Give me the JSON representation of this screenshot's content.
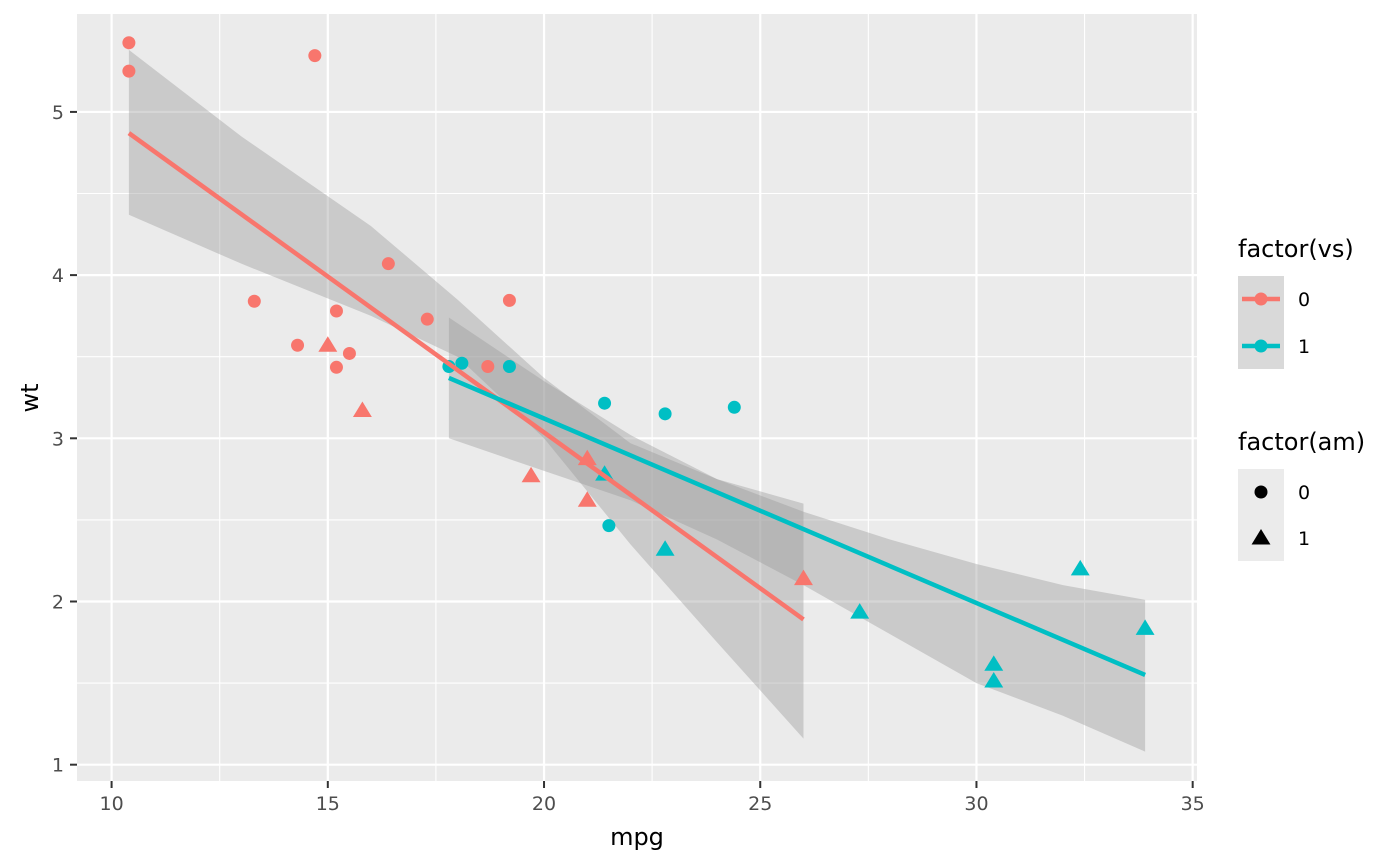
{
  "chart_data": {
    "type": "scatter",
    "title": "",
    "xlabel": "mpg",
    "ylabel": "wt",
    "xlim": [
      9.2,
      35.1
    ],
    "ylim": [
      0.9,
      5.6
    ],
    "x_ticks": [
      10,
      15,
      20,
      25,
      30,
      35
    ],
    "y_ticks": [
      1,
      2,
      3,
      4,
      5
    ],
    "grid": true,
    "legend_position": "right",
    "colors": {
      "vs0": "#F8766D",
      "vs1": "#00BFC4",
      "ribbon": "#999999",
      "panel": "#EBEBEB",
      "grid": "#FFFFFF"
    },
    "legends": [
      {
        "title": "factor(vs)",
        "type": "color",
        "entries": [
          {
            "label": "0",
            "color": "#F8766D"
          },
          {
            "label": "1",
            "color": "#00BFC4"
          }
        ]
      },
      {
        "title": "factor(am)",
        "type": "shape",
        "entries": [
          {
            "label": "0",
            "shape": "circle"
          },
          {
            "label": "1",
            "shape": "triangle"
          }
        ]
      }
    ],
    "points": [
      {
        "x": 10.4,
        "y": 5.424,
        "vs": 0,
        "am": 0
      },
      {
        "x": 10.4,
        "y": 5.25,
        "vs": 0,
        "am": 0
      },
      {
        "x": 14.7,
        "y": 5.345,
        "vs": 0,
        "am": 0
      },
      {
        "x": 13.3,
        "y": 3.84,
        "vs": 0,
        "am": 0
      },
      {
        "x": 14.3,
        "y": 3.57,
        "vs": 0,
        "am": 0
      },
      {
        "x": 15.2,
        "y": 3.78,
        "vs": 0,
        "am": 0
      },
      {
        "x": 15.2,
        "y": 3.435,
        "vs": 0,
        "am": 0
      },
      {
        "x": 15.5,
        "y": 3.52,
        "vs": 0,
        "am": 0
      },
      {
        "x": 16.4,
        "y": 4.07,
        "vs": 0,
        "am": 0
      },
      {
        "x": 17.3,
        "y": 3.73,
        "vs": 0,
        "am": 0
      },
      {
        "x": 18.7,
        "y": 3.44,
        "vs": 0,
        "am": 0
      },
      {
        "x": 19.2,
        "y": 3.845,
        "vs": 0,
        "am": 0
      },
      {
        "x": 15.0,
        "y": 3.57,
        "vs": 0,
        "am": 1
      },
      {
        "x": 15.8,
        "y": 3.17,
        "vs": 0,
        "am": 1
      },
      {
        "x": 19.7,
        "y": 2.77,
        "vs": 0,
        "am": 1
      },
      {
        "x": 21.0,
        "y": 2.62,
        "vs": 0,
        "am": 1
      },
      {
        "x": 21.0,
        "y": 2.875,
        "vs": 0,
        "am": 1
      },
      {
        "x": 26.0,
        "y": 2.14,
        "vs": 0,
        "am": 1
      },
      {
        "x": 17.8,
        "y": 3.44,
        "vs": 1,
        "am": 0
      },
      {
        "x": 18.1,
        "y": 3.46,
        "vs": 1,
        "am": 0
      },
      {
        "x": 19.2,
        "y": 3.44,
        "vs": 1,
        "am": 0
      },
      {
        "x": 21.4,
        "y": 3.215,
        "vs": 1,
        "am": 0
      },
      {
        "x": 21.5,
        "y": 2.465,
        "vs": 1,
        "am": 0
      },
      {
        "x": 22.8,
        "y": 3.15,
        "vs": 1,
        "am": 0
      },
      {
        "x": 24.4,
        "y": 3.19,
        "vs": 1,
        "am": 0
      },
      {
        "x": 21.4,
        "y": 2.78,
        "vs": 1,
        "am": 1
      },
      {
        "x": 22.8,
        "y": 2.32,
        "vs": 1,
        "am": 1
      },
      {
        "x": 27.3,
        "y": 1.935,
        "vs": 1,
        "am": 1
      },
      {
        "x": 30.4,
        "y": 1.615,
        "vs": 1,
        "am": 1
      },
      {
        "x": 30.4,
        "y": 1.513,
        "vs": 1,
        "am": 1
      },
      {
        "x": 32.4,
        "y": 2.2,
        "vs": 1,
        "am": 1
      },
      {
        "x": 33.9,
        "y": 1.835,
        "vs": 1,
        "am": 1
      }
    ],
    "fits": [
      {
        "vs": "0",
        "line": [
          [
            10.4,
            4.87
          ],
          [
            26.0,
            1.89
          ]
        ],
        "ribbon_upper": [
          [
            10.4,
            5.38
          ],
          [
            13.0,
            4.85
          ],
          [
            16.0,
            4.3
          ],
          [
            18.0,
            3.85
          ],
          [
            20.0,
            3.37
          ],
          [
            22.0,
            2.97
          ],
          [
            24.0,
            2.75
          ],
          [
            26.0,
            2.6
          ]
        ],
        "ribbon_lower": [
          [
            10.4,
            4.37
          ],
          [
            13.0,
            4.07
          ],
          [
            16.0,
            3.75
          ],
          [
            18.0,
            3.5
          ],
          [
            20.0,
            3.0
          ],
          [
            22.0,
            2.35
          ],
          [
            24.0,
            1.75
          ],
          [
            26.0,
            1.16
          ]
        ]
      },
      {
        "vs": "1",
        "line": [
          [
            17.8,
            3.37
          ],
          [
            33.9,
            1.55
          ]
        ],
        "ribbon_upper": [
          [
            17.8,
            3.74
          ],
          [
            20.0,
            3.35
          ],
          [
            22.0,
            3.02
          ],
          [
            24.0,
            2.75
          ],
          [
            26.0,
            2.55
          ],
          [
            28.0,
            2.38
          ],
          [
            30.0,
            2.23
          ],
          [
            32.0,
            2.1
          ],
          [
            33.9,
            2.01
          ]
        ],
        "ribbon_lower": [
          [
            17.8,
            3.0
          ],
          [
            20.0,
            2.8
          ],
          [
            22.0,
            2.62
          ],
          [
            24.0,
            2.38
          ],
          [
            26.0,
            2.1
          ],
          [
            28.0,
            1.8
          ],
          [
            30.0,
            1.5
          ],
          [
            32.0,
            1.3
          ],
          [
            33.9,
            1.08
          ]
        ]
      }
    ]
  }
}
